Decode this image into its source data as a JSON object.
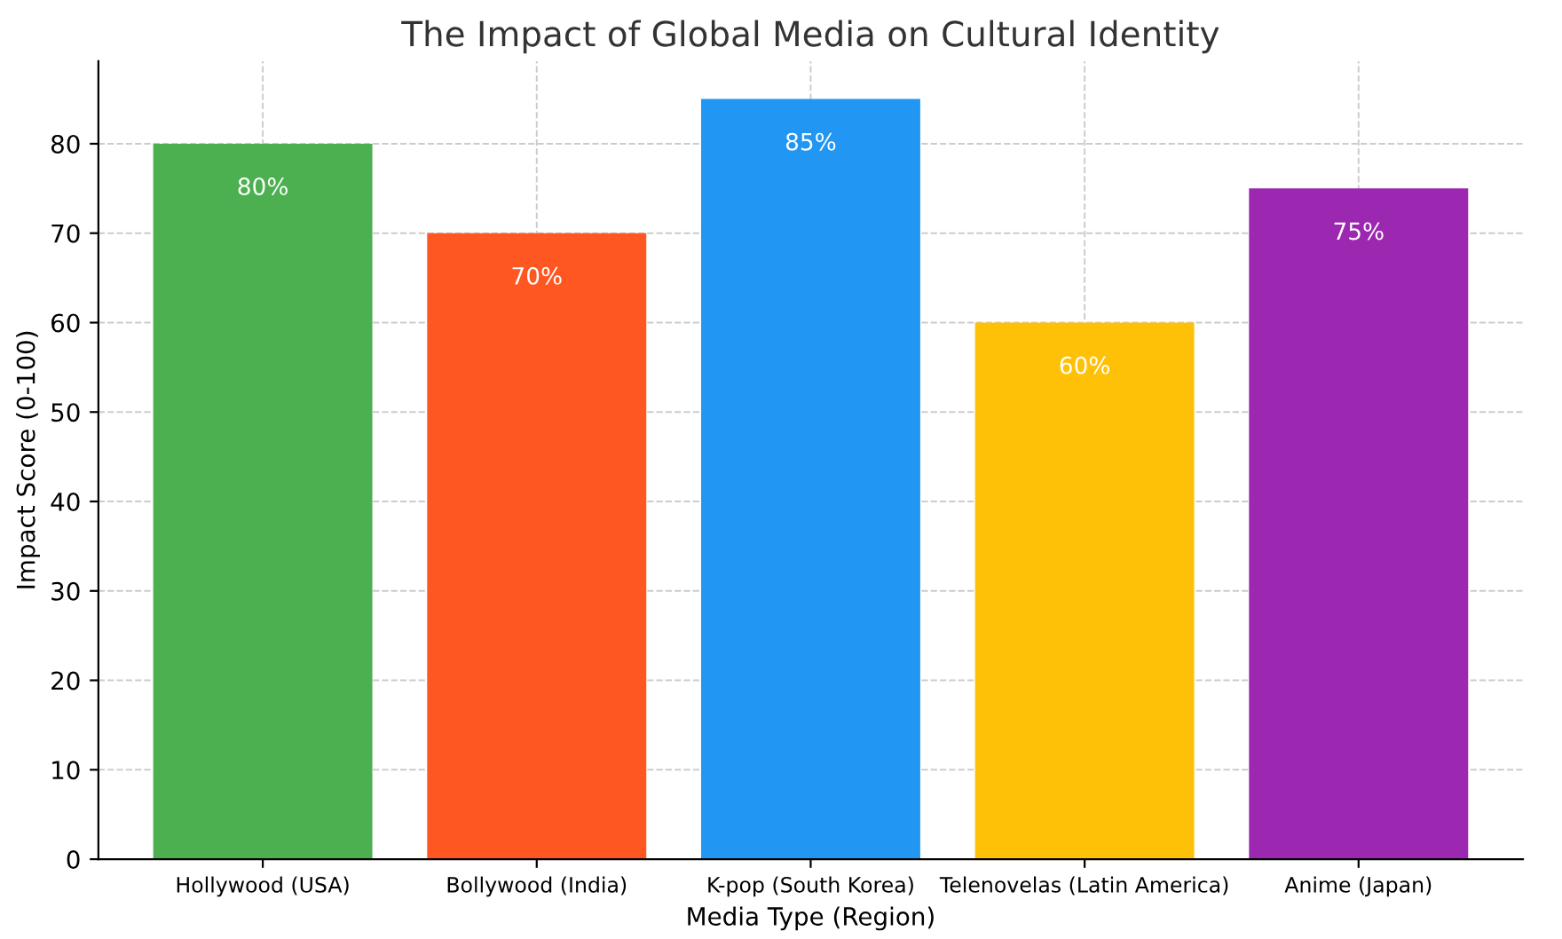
{
  "chart_data": {
    "type": "bar",
    "title": "The Impact of Global Media on Cultural Identity",
    "xlabel": "Media Type (Region)",
    "ylabel": "Impact Score (0-100)",
    "categories": [
      "Hollywood (USA)",
      "Bollywood (India)",
      "K-pop (South Korea)",
      "Telenovelas (Latin America)",
      "Anime (Japan)"
    ],
    "values": [
      80,
      70,
      85,
      60,
      75
    ],
    "value_labels": [
      "80%",
      "70%",
      "85%",
      "60%",
      "75%"
    ],
    "colors": [
      "#4caf50",
      "#ff5722",
      "#2196f3",
      "#ffc107",
      "#9c27b0"
    ],
    "ylim": [
      0,
      89.25
    ],
    "yticks": [
      0,
      10,
      20,
      30,
      40,
      50,
      60,
      70,
      80
    ],
    "grid": true
  }
}
